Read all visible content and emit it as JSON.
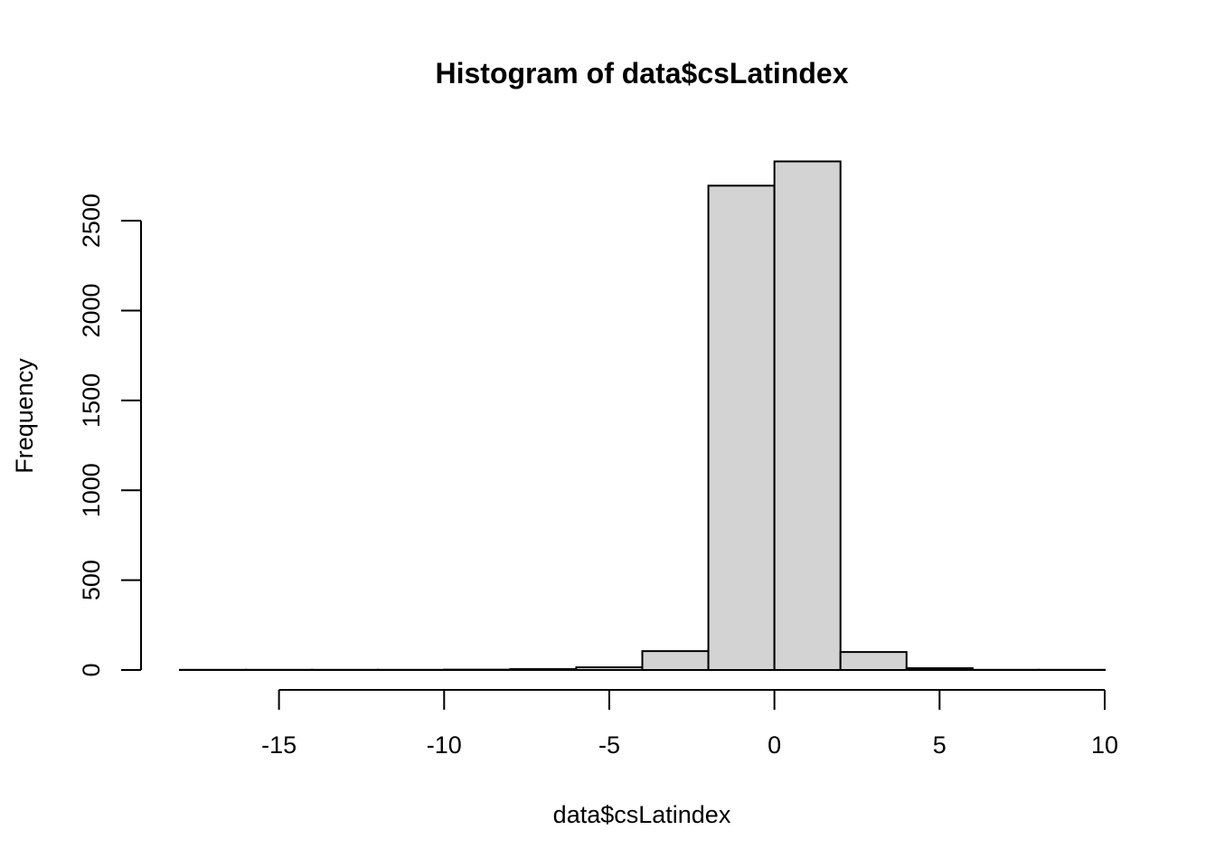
{
  "chart_data": {
    "type": "bar",
    "title": "Histogram of data$csLatindex",
    "xlabel": "data$csLatindex",
    "ylabel": "Frequency",
    "xlim": [
      -18,
      10
    ],
    "ylim": [
      0,
      2800
    ],
    "x_ticks": [
      -15,
      -10,
      -5,
      0,
      5,
      10
    ],
    "y_ticks": [
      0,
      500,
      1000,
      1500,
      2000,
      2500
    ],
    "bin_edges": [
      -18,
      -16,
      -14,
      -12,
      -10,
      -8,
      -6,
      -4,
      -2,
      0,
      2,
      4,
      6,
      8,
      10
    ],
    "values": [
      1,
      1,
      1,
      1,
      2,
      5,
      15,
      105,
      2695,
      2830,
      100,
      10,
      1,
      1
    ],
    "bar_fill": "#d3d3d3",
    "grid": false,
    "legend": "none"
  }
}
